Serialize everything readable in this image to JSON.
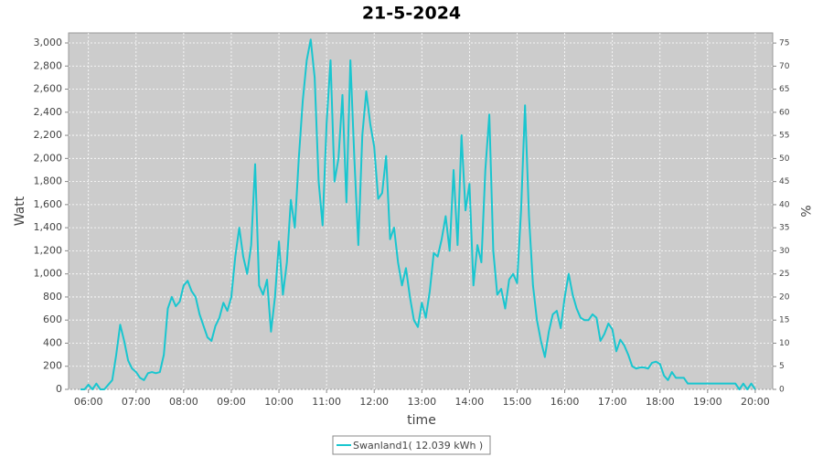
{
  "chart_data": {
    "type": "line",
    "title": "21-5-2024",
    "x_label": "time",
    "y_label": "Watt",
    "y2_label": "%",
    "x": [
      "05:50",
      "05:55",
      "06:00",
      "06:05",
      "06:10",
      "06:15",
      "06:20",
      "06:25",
      "06:30",
      "06:35",
      "06:40",
      "06:45",
      "06:50",
      "06:55",
      "07:00",
      "07:05",
      "07:10",
      "07:15",
      "07:20",
      "07:25",
      "07:30",
      "07:35",
      "07:40",
      "07:45",
      "07:50",
      "07:55",
      "08:00",
      "08:05",
      "08:10",
      "08:15",
      "08:20",
      "08:25",
      "08:30",
      "08:35",
      "08:40",
      "08:45",
      "08:50",
      "08:55",
      "09:00",
      "09:05",
      "09:10",
      "09:15",
      "09:20",
      "09:25",
      "09:30",
      "09:35",
      "09:40",
      "09:45",
      "09:50",
      "09:55",
      "10:00",
      "10:05",
      "10:10",
      "10:15",
      "10:20",
      "10:25",
      "10:30",
      "10:35",
      "10:40",
      "10:45",
      "10:50",
      "10:55",
      "11:00",
      "11:05",
      "11:10",
      "11:15",
      "11:20",
      "11:25",
      "11:30",
      "11:35",
      "11:40",
      "11:45",
      "11:50",
      "11:55",
      "12:00",
      "12:05",
      "12:10",
      "12:15",
      "12:20",
      "12:25",
      "12:30",
      "12:35",
      "12:40",
      "12:45",
      "12:50",
      "12:55",
      "13:00",
      "13:05",
      "13:10",
      "13:15",
      "13:20",
      "13:25",
      "13:30",
      "13:35",
      "13:40",
      "13:45",
      "13:50",
      "13:55",
      "14:00",
      "14:05",
      "14:10",
      "14:15",
      "14:20",
      "14:25",
      "14:30",
      "14:35",
      "14:40",
      "14:45",
      "14:50",
      "14:55",
      "15:00",
      "15:05",
      "15:10",
      "15:15",
      "15:20",
      "15:25",
      "15:30",
      "15:35",
      "15:40",
      "15:45",
      "15:50",
      "15:55",
      "16:00",
      "16:05",
      "16:10",
      "16:15",
      "16:20",
      "16:25",
      "16:30",
      "16:35",
      "16:40",
      "16:45",
      "16:50",
      "16:55",
      "17:00",
      "17:05",
      "17:10",
      "17:15",
      "17:20",
      "17:25",
      "17:30",
      "17:35",
      "17:40",
      "17:45",
      "17:50",
      "17:55",
      "18:00",
      "18:05",
      "18:10",
      "18:15",
      "18:20",
      "18:25",
      "18:30",
      "18:35",
      "18:40",
      "18:45",
      "18:50",
      "18:55",
      "19:00",
      "19:05",
      "19:10",
      "19:15",
      "19:20",
      "19:25",
      "19:30",
      "19:35",
      "19:40",
      "19:45",
      "19:50",
      "19:55",
      "20:00"
    ],
    "series": [
      {
        "name": "Swanland1( 12.039 kWh )",
        "color": "#19c6cf",
        "values": [
          0,
          0,
          40,
          0,
          50,
          0,
          0,
          40,
          80,
          300,
          560,
          420,
          250,
          180,
          150,
          100,
          80,
          140,
          150,
          140,
          150,
          300,
          700,
          800,
          720,
          760,
          900,
          940,
          850,
          800,
          650,
          550,
          450,
          420,
          550,
          620,
          750,
          680,
          800,
          1150,
          1400,
          1150,
          1000,
          1250,
          1950,
          900,
          820,
          950,
          500,
          800,
          1280,
          820,
          1100,
          1640,
          1400,
          2000,
          2500,
          2850,
          3030,
          2700,
          1800,
          1420,
          2300,
          2850,
          1800,
          2000,
          2550,
          1620,
          2850,
          2000,
          1250,
          2200,
          2580,
          2300,
          2100,
          1650,
          1700,
          2020,
          1300,
          1400,
          1100,
          900,
          1050,
          800,
          600,
          540,
          750,
          620,
          850,
          1180,
          1150,
          1300,
          1500,
          1200,
          1900,
          1250,
          2200,
          1550,
          1780,
          900,
          1250,
          1100,
          1900,
          2380,
          1200,
          820,
          870,
          700,
          950,
          1000,
          920,
          1550,
          2460,
          1500,
          900,
          600,
          420,
          280,
          500,
          650,
          680,
          530,
          800,
          1000,
          820,
          700,
          620,
          600,
          600,
          650,
          620,
          420,
          480,
          570,
          520,
          330,
          430,
          380,
          300,
          200,
          180,
          190,
          190,
          180,
          230,
          240,
          220,
          120,
          80,
          150,
          100,
          100,
          100,
          50,
          50,
          50,
          50,
          50,
          50,
          50,
          50,
          50,
          50,
          50,
          50,
          50,
          0,
          50,
          0,
          50,
          0
        ]
      }
    ],
    "xlim": [
      "05:35",
      "20:22"
    ],
    "xticks": [
      "06:00",
      "07:00",
      "08:00",
      "09:00",
      "10:00",
      "11:00",
      "12:00",
      "13:00",
      "14:00",
      "15:00",
      "16:00",
      "17:00",
      "18:00",
      "19:00",
      "20:00"
    ],
    "ylim": [
      0,
      3087
    ],
    "yticks": [
      0,
      200,
      400,
      600,
      800,
      {
        "value": 1000,
        "label": "1,000"
      },
      {
        "value": 1200,
        "label": "1,200"
      },
      {
        "value": 1400,
        "label": "1,400"
      },
      {
        "value": 1600,
        "label": "1,600"
      },
      {
        "value": 1800,
        "label": "1,800"
      },
      {
        "value": 2000,
        "label": "2,000"
      },
      {
        "value": 2200,
        "label": "2,200"
      },
      {
        "value": 2400,
        "label": "2,400"
      },
      {
        "value": 2600,
        "label": "2,600"
      },
      {
        "value": 2800,
        "label": "2,800"
      },
      {
        "value": 3000,
        "label": "3,000"
      }
    ],
    "y2lim": [
      0,
      77.2
    ],
    "y2ticks": [
      0,
      5,
      10,
      15,
      20,
      25,
      30,
      35,
      40,
      45,
      50,
      55,
      60,
      65,
      70,
      75
    ],
    "grid": true,
    "legend": "bottom"
  }
}
